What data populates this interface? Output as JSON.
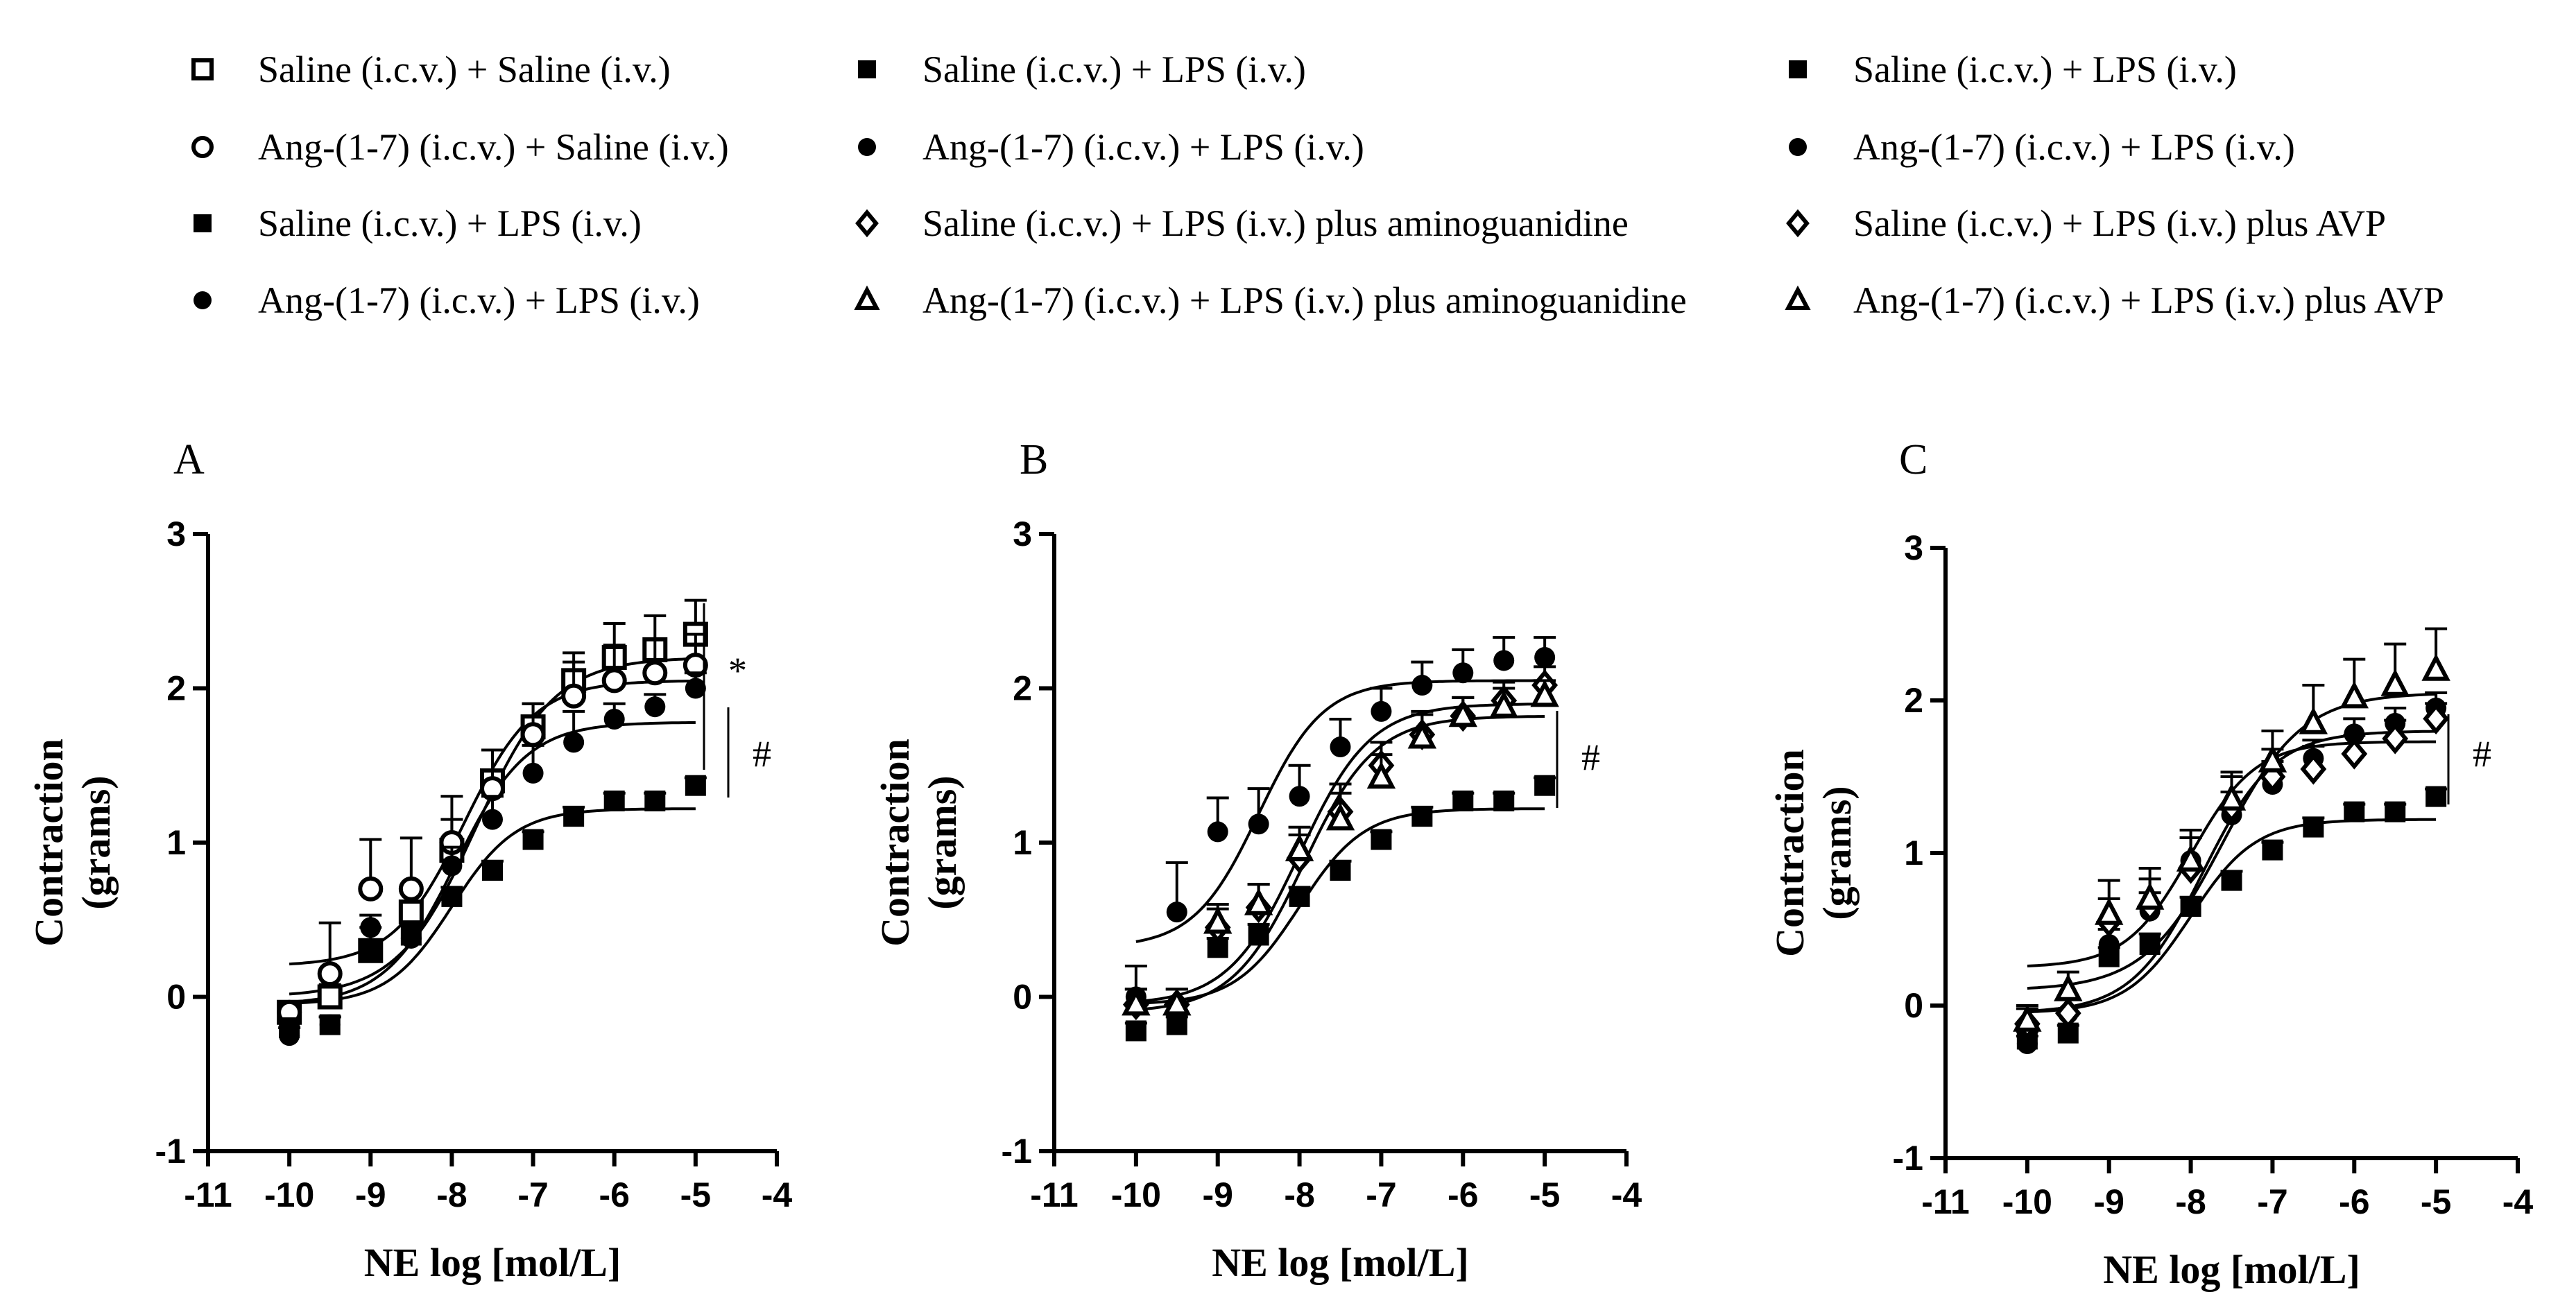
{
  "legend_columns": [
    [
      {
        "label": "Saline (i.c.v.) + Saline (i.v.)",
        "marker": "square-open"
      },
      {
        "label": "Ang-(1-7) (i.c.v.) + Saline (i.v.)",
        "marker": "circle-open"
      },
      {
        "label": "Saline (i.c.v.) + LPS (i.v.)",
        "marker": "square-filled"
      },
      {
        "label": "Ang-(1-7) (i.c.v.) + LPS (i.v.)",
        "marker": "circle-filled"
      }
    ],
    [
      {
        "label": "Saline (i.c.v.) + LPS (i.v.)",
        "marker": "square-filled"
      },
      {
        "label": "Ang-(1-7) (i.c.v.) + LPS (i.v.)",
        "marker": "circle-filled"
      },
      {
        "label": "Saline (i.c.v.) + LPS (i.v.) plus aminoguanidine",
        "marker": "diamond-open"
      },
      {
        "label": "Ang-(1-7) (i.c.v.) + LPS (i.v.) plus aminoguanidine",
        "marker": "triangle-open"
      }
    ],
    [
      {
        "label": "Saline (i.c.v.) + LPS (i.v.)",
        "marker": "square-filled"
      },
      {
        "label": "Ang-(1-7) (i.c.v.) + LPS (i.v.)",
        "marker": "circle-filled"
      },
      {
        "label": "Saline (i.c.v.) + LPS (i.v.) plus AVP",
        "marker": "diamond-open"
      },
      {
        "label": "Ang-(1-7) (i.c.v.) + LPS (i.v.) plus AVP",
        "marker": "triangle-open"
      }
    ]
  ],
  "chart_data": [
    {
      "type": "scatter",
      "panel_label": "A",
      "xlabel": "NE log [mol/L]",
      "ylabel_lines": [
        "Contraction",
        "(grams)"
      ],
      "xlim": [
        -11,
        -4
      ],
      "ylim": [
        -1,
        3
      ],
      "xticks": [
        -11,
        -10,
        -9,
        -8,
        -7,
        -6,
        -5,
        -4
      ],
      "yticks": [
        -1,
        0,
        1,
        2,
        3
      ],
      "x": [
        -10,
        -9.5,
        -9,
        -8.5,
        -8,
        -7.5,
        -7,
        -6.5,
        -6,
        -5.5,
        -5
      ],
      "grid": false,
      "series": [
        {
          "marker": "square-open",
          "label_ref": "Saline (i.c.v.) + Saline (i.v.)",
          "values": [
            -0.1,
            0.0,
            0.3,
            0.55,
            0.95,
            1.4,
            1.75,
            2.05,
            2.2,
            2.25,
            2.35
          ],
          "errors": [
            0.06,
            0.08,
            0.15,
            0.15,
            0.2,
            0.2,
            0.15,
            0.18,
            0.22,
            0.22,
            0.22
          ],
          "fit": {
            "bottom": 0.0,
            "top": 2.2,
            "logEC50": -7.7,
            "hill": 0.9
          }
        },
        {
          "marker": "circle-open",
          "label_ref": "Ang-(1-7) (i.c.v.) + Saline (i.v.)",
          "values": [
            -0.1,
            0.15,
            0.7,
            0.7,
            1.0,
            1.35,
            1.7,
            1.95,
            2.05,
            2.1,
            2.15
          ],
          "errors": [
            0.05,
            0.33,
            0.32,
            0.33,
            0.3,
            0.25,
            0.2,
            0.22,
            0.23,
            0.22,
            0.2
          ],
          "fit": {
            "bottom": 0.2,
            "top": 2.05,
            "logEC50": -7.85,
            "hill": 1.0
          }
        },
        {
          "marker": "square-filled",
          "label_ref": "Saline (i.c.v.) + LPS (i.v.)",
          "values": [
            -0.2,
            -0.18,
            0.3,
            0.4,
            0.65,
            0.82,
            1.02,
            1.17,
            1.27,
            1.27,
            1.37
          ],
          "errors": [
            0.05,
            0.05,
            0.06,
            0.07,
            0.06,
            0.06,
            0.05,
            0.06,
            0.05,
            0.05,
            0.05
          ],
          "fit": {
            "bottom": -0.05,
            "top": 1.22,
            "logEC50": -8.0,
            "hill": 1.1
          }
        },
        {
          "marker": "circle-filled",
          "label_ref": "Ang-(1-7) (i.c.v.) + LPS (i.v.)",
          "values": [
            -0.25,
            -0.18,
            0.45,
            0.38,
            0.85,
            1.15,
            1.45,
            1.65,
            1.8,
            1.88,
            2.0
          ],
          "errors": [
            0.05,
            0.05,
            0.08,
            0.1,
            0.12,
            0.15,
            0.18,
            0.2,
            0.1,
            0.08,
            0.1
          ],
          "fit": {
            "bottom": -0.05,
            "top": 1.78,
            "logEC50": -7.95,
            "hill": 1.0
          }
        }
      ],
      "annotations": [
        "*",
        "#"
      ]
    },
    {
      "type": "scatter",
      "panel_label": "B",
      "xlabel": "NE log [mol/L]",
      "ylabel_lines": [
        "Contraction",
        "(grams)"
      ],
      "xlim": [
        -11,
        -4
      ],
      "ylim": [
        -1,
        3
      ],
      "xticks": [
        -11,
        -10,
        -9,
        -8,
        -7,
        -6,
        -5,
        -4
      ],
      "yticks": [
        -1,
        0,
        1,
        2,
        3
      ],
      "x": [
        -10,
        -9.5,
        -9,
        -8.5,
        -8,
        -7.5,
        -7,
        -6.5,
        -6,
        -5.5,
        -5
      ],
      "grid": false,
      "series": [
        {
          "marker": "square-filled",
          "label_ref": "Saline (i.c.v.) + LPS (i.v.)",
          "values": [
            -0.22,
            -0.18,
            0.32,
            0.4,
            0.65,
            0.82,
            1.02,
            1.17,
            1.27,
            1.27,
            1.37
          ],
          "errors": [
            0.05,
            0.05,
            0.06,
            0.07,
            0.06,
            0.06,
            0.05,
            0.06,
            0.05,
            0.05,
            0.05
          ],
          "fit": {
            "bottom": -0.05,
            "top": 1.22,
            "logEC50": -8.0,
            "hill": 1.1
          }
        },
        {
          "marker": "circle-filled",
          "label_ref": "Ang-(1-7) (i.c.v.) + LPS (i.v.)",
          "values": [
            0.0,
            0.55,
            1.07,
            1.12,
            1.3,
            1.62,
            1.85,
            2.02,
            2.1,
            2.18,
            2.2
          ],
          "errors": [
            0.2,
            0.32,
            0.22,
            0.23,
            0.2,
            0.18,
            0.15,
            0.15,
            0.15,
            0.15,
            0.13
          ],
          "fit": {
            "bottom": 0.32,
            "top": 2.05,
            "logEC50": -8.5,
            "hill": 1.1
          }
        },
        {
          "marker": "diamond-open",
          "label_ref": "Saline (i.c.v.) + LPS (i.v.) plus aminoguanidine",
          "values": [
            -0.05,
            -0.05,
            0.45,
            0.58,
            0.9,
            1.2,
            1.5,
            1.7,
            1.82,
            1.92,
            2.02
          ],
          "errors": [
            0.1,
            0.1,
            0.12,
            0.15,
            0.15,
            0.18,
            0.15,
            0.15,
            0.12,
            0.12,
            0.12
          ],
          "fit": {
            "bottom": -0.05,
            "top": 1.9,
            "logEC50": -8.0,
            "hill": 1.0
          }
        },
        {
          "marker": "triangle-open",
          "label_ref": "Ang-(1-7) (i.c.v.) + LPS (i.v.) plus aminoguanidine",
          "values": [
            -0.05,
            -0.05,
            0.48,
            0.6,
            0.95,
            1.15,
            1.42,
            1.68,
            1.82,
            1.88,
            1.95
          ],
          "errors": [
            0.1,
            0.1,
            0.12,
            0.13,
            0.15,
            0.17,
            0.15,
            0.15,
            0.12,
            0.12,
            0.1
          ],
          "fit": {
            "bottom": -0.1,
            "top": 1.82,
            "logEC50": -7.95,
            "hill": 1.0
          }
        }
      ],
      "annotations": [
        "#"
      ]
    },
    {
      "type": "scatter",
      "panel_label": "C",
      "xlabel": "NE log [mol/L]",
      "ylabel_lines": [
        "Contraction",
        "(grams)"
      ],
      "xlim": [
        -11,
        -4
      ],
      "ylim": [
        -1,
        3
      ],
      "xticks": [
        -11,
        -10,
        -9,
        -8,
        -7,
        -6,
        -5,
        -4
      ],
      "yticks": [
        -1,
        0,
        1,
        2,
        3
      ],
      "x": [
        -10,
        -9.5,
        -9,
        -8.5,
        -8,
        -7.5,
        -7,
        -6.5,
        -6,
        -5.5,
        -5
      ],
      "grid": false,
      "series": [
        {
          "marker": "square-filled",
          "label_ref": "Saline (i.c.v.) + LPS (i.v.)",
          "values": [
            -0.22,
            -0.18,
            0.32,
            0.4,
            0.65,
            0.82,
            1.02,
            1.17,
            1.27,
            1.27,
            1.37
          ],
          "errors": [
            0.05,
            0.05,
            0.06,
            0.07,
            0.06,
            0.06,
            0.05,
            0.06,
            0.05,
            0.05,
            0.05
          ],
          "fit": {
            "bottom": -0.05,
            "top": 1.22,
            "logEC50": -8.0,
            "hill": 1.1
          }
        },
        {
          "marker": "circle-filled",
          "label_ref": "Ang-(1-7) (i.c.v.) + LPS (i.v.)",
          "values": [
            -0.25,
            -0.05,
            0.4,
            0.62,
            0.95,
            1.25,
            1.45,
            1.62,
            1.78,
            1.85,
            1.95
          ],
          "errors": [
            0.05,
            0.1,
            0.1,
            0.12,
            0.15,
            0.15,
            0.15,
            0.12,
            0.1,
            0.1,
            0.1
          ],
          "fit": {
            "bottom": -0.05,
            "top": 1.8,
            "logEC50": -7.85,
            "hill": 1.0
          }
        },
        {
          "marker": "diamond-open",
          "label_ref": "Saline (i.c.v.) + LPS (i.v.) plus AVP",
          "values": [
            -0.12,
            -0.05,
            0.55,
            0.65,
            0.9,
            1.3,
            1.5,
            1.55,
            1.65,
            1.75,
            1.88
          ],
          "errors": [
            0.1,
            0.1,
            0.15,
            0.18,
            0.2,
            0.2,
            0.18,
            0.15,
            0.12,
            0.12,
            0.1
          ],
          "fit": {
            "bottom": 0.25,
            "top": 1.73,
            "logEC50": -8.0,
            "hill": 1.1
          }
        },
        {
          "marker": "triangle-open",
          "label_ref": "Ang-(1-7) (i.c.v.) + LPS (i.v.) plus AVP",
          "values": [
            -0.1,
            0.1,
            0.6,
            0.7,
            0.95,
            1.35,
            1.6,
            1.85,
            2.02,
            2.1,
            2.2
          ],
          "errors": [
            0.1,
            0.12,
            0.22,
            0.2,
            0.2,
            0.18,
            0.2,
            0.25,
            0.25,
            0.27,
            0.27
          ],
          "fit": {
            "bottom": 0.1,
            "top": 2.05,
            "logEC50": -7.6,
            "hill": 0.9
          }
        }
      ],
      "annotations": [
        "#"
      ]
    }
  ]
}
